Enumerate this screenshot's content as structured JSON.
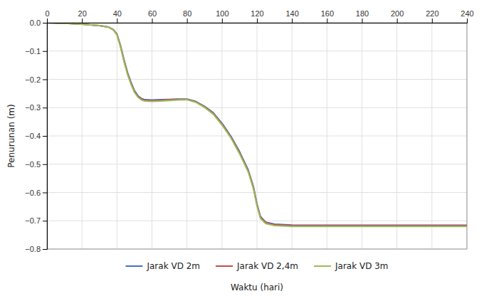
{
  "chart_data": {
    "type": "line",
    "xlabel": "Waktu (hari)",
    "ylabel": "Penurunan (m)",
    "x": [
      0,
      10,
      20,
      30,
      35,
      38,
      40,
      42,
      44,
      46,
      48,
      50,
      52,
      54,
      56,
      60,
      65,
      70,
      75,
      80,
      85,
      90,
      95,
      100,
      105,
      110,
      115,
      118,
      120,
      122,
      125,
      130,
      140,
      160,
      180,
      200,
      220,
      240
    ],
    "series": [
      {
        "name": "Jarak VD 2m",
        "color": "#4472C4",
        "values": [
          0.0,
          -0.002,
          -0.005,
          -0.01,
          -0.015,
          -0.025,
          -0.04,
          -0.08,
          -0.13,
          -0.175,
          -0.21,
          -0.24,
          -0.258,
          -0.268,
          -0.272,
          -0.273,
          -0.272,
          -0.271,
          -0.27,
          -0.27,
          -0.278,
          -0.295,
          -0.318,
          -0.355,
          -0.4,
          -0.455,
          -0.52,
          -0.58,
          -0.64,
          -0.685,
          -0.705,
          -0.712,
          -0.715,
          -0.716,
          -0.716,
          -0.716,
          -0.716,
          -0.716
        ]
      },
      {
        "name": "Jarak VD 2,4m",
        "color": "#C0504D",
        "values": [
          0.0,
          -0.002,
          -0.005,
          -0.01,
          -0.015,
          -0.025,
          -0.041,
          -0.082,
          -0.133,
          -0.178,
          -0.213,
          -0.243,
          -0.26,
          -0.27,
          -0.274,
          -0.275,
          -0.274,
          -0.272,
          -0.271,
          -0.271,
          -0.279,
          -0.297,
          -0.32,
          -0.358,
          -0.403,
          -0.458,
          -0.523,
          -0.583,
          -0.643,
          -0.688,
          -0.707,
          -0.714,
          -0.717,
          -0.717,
          -0.717,
          -0.717,
          -0.717,
          -0.717
        ]
      },
      {
        "name": "Jarak VD 3m",
        "color": "#9BBB59",
        "values": [
          0.0,
          -0.002,
          -0.005,
          -0.01,
          -0.015,
          -0.026,
          -0.043,
          -0.085,
          -0.137,
          -0.182,
          -0.217,
          -0.246,
          -0.263,
          -0.273,
          -0.277,
          -0.278,
          -0.277,
          -0.275,
          -0.273,
          -0.272,
          -0.281,
          -0.299,
          -0.323,
          -0.361,
          -0.406,
          -0.462,
          -0.527,
          -0.587,
          -0.647,
          -0.692,
          -0.71,
          -0.717,
          -0.72,
          -0.72,
          -0.72,
          -0.72,
          -0.72,
          -0.72
        ]
      }
    ],
    "xlim": [
      0,
      240
    ],
    "ylim": [
      -0.8,
      0.0
    ],
    "xticks": [
      0,
      20,
      40,
      60,
      80,
      100,
      120,
      140,
      160,
      180,
      200,
      220,
      240
    ],
    "yticks": [
      {
        "value": 0,
        "label": "0.0"
      },
      {
        "value": -0.1,
        "label": "−0.1"
      },
      {
        "value": -0.2,
        "label": "−0.2"
      },
      {
        "value": -0.3,
        "label": "−0.3"
      },
      {
        "value": -0.4,
        "label": "−0.4"
      },
      {
        "value": -0.5,
        "label": "−0.5"
      },
      {
        "value": -0.6,
        "label": "−0.6"
      },
      {
        "value": -0.7,
        "label": "−0.7"
      },
      {
        "value": -0.8,
        "label": "−0.8"
      }
    ],
    "grid": true,
    "legend": "bottom"
  }
}
